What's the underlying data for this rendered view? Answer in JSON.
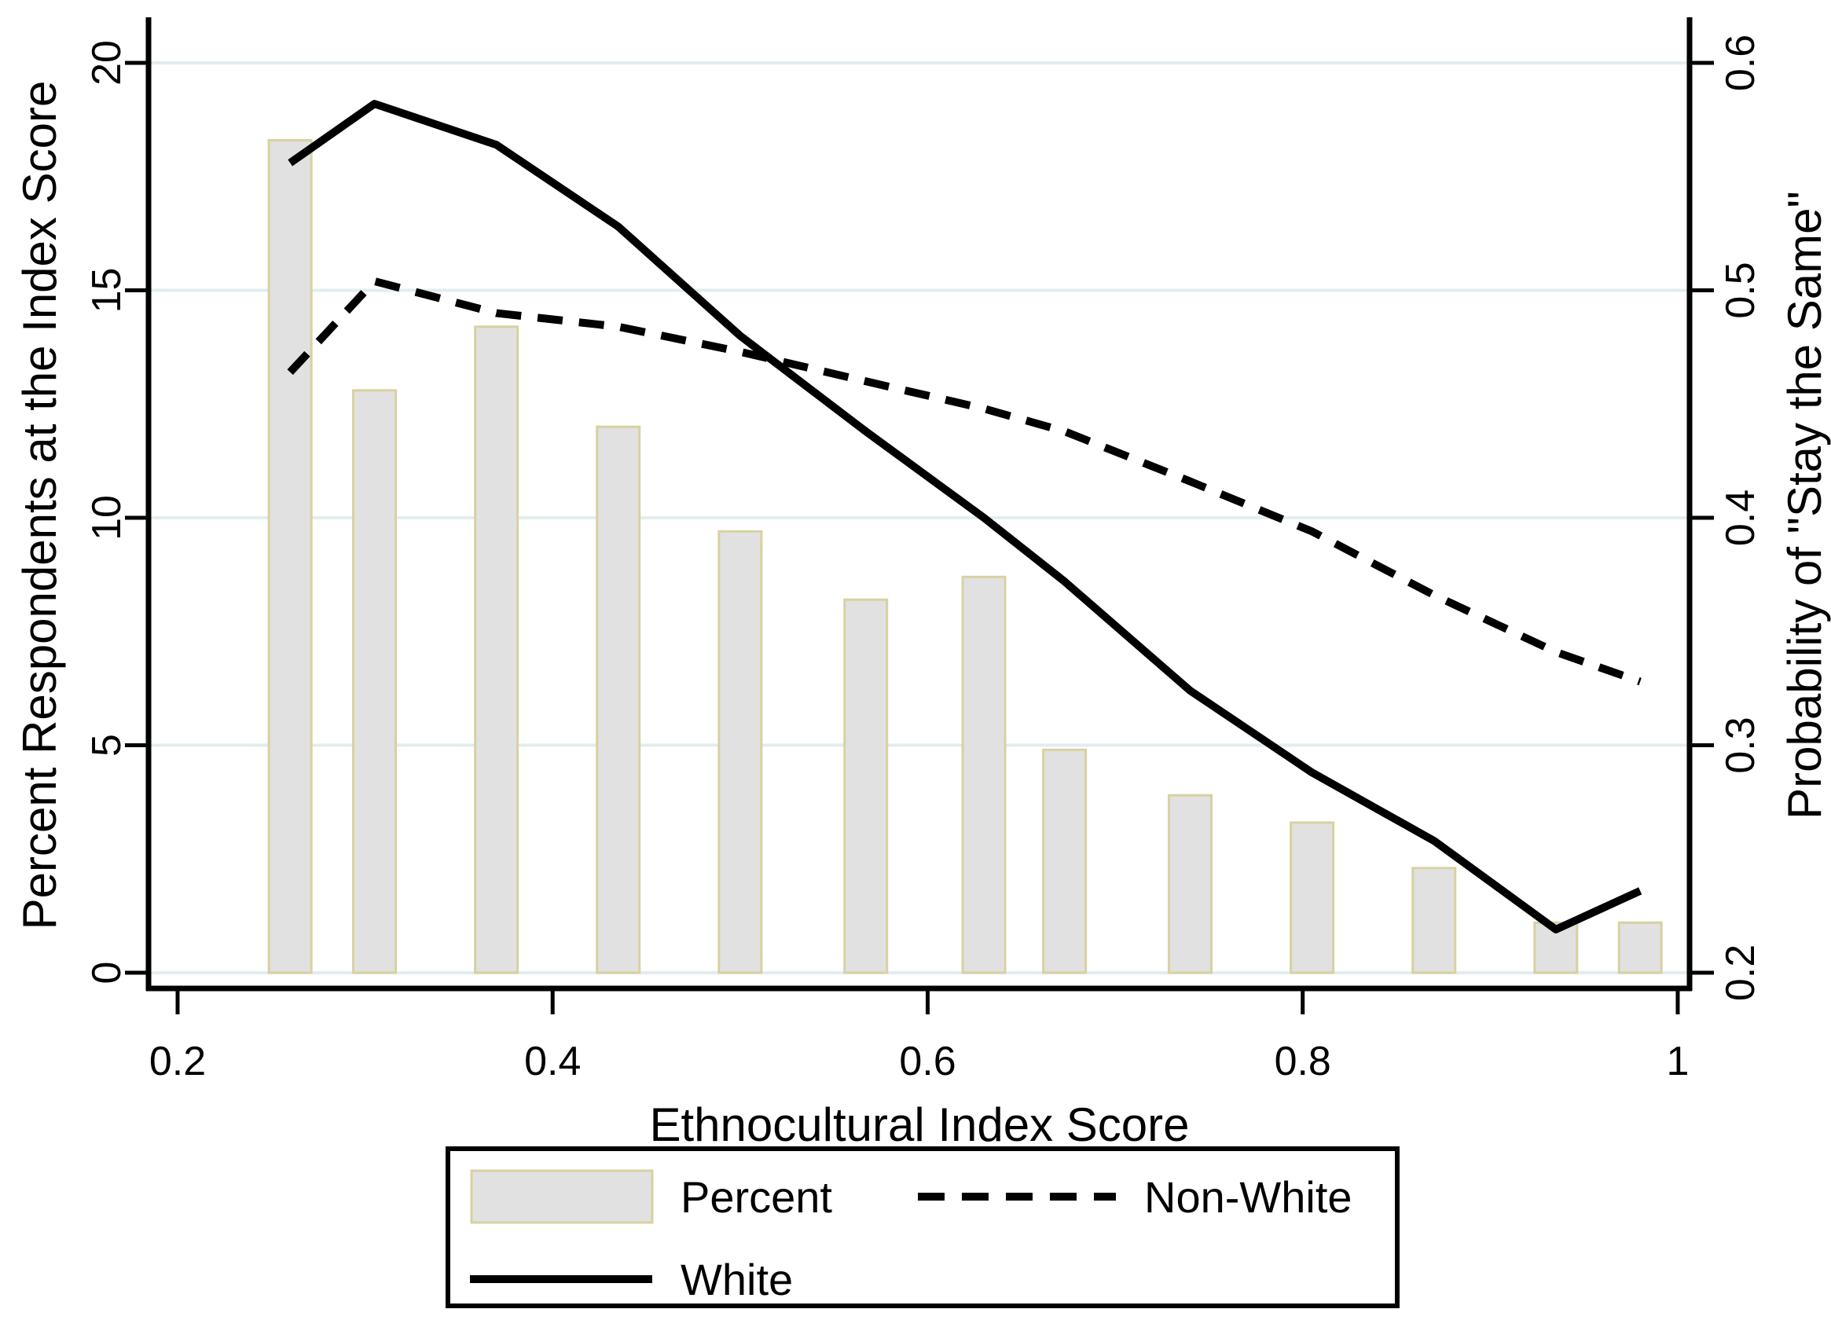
{
  "chart_data": {
    "type": "combo-bar-line",
    "title": "",
    "x": [
      0.26,
      0.305,
      0.37,
      0.435,
      0.5,
      0.567,
      0.63,
      0.673,
      0.74,
      0.805,
      0.87,
      0.935,
      0.98
    ],
    "series": [
      {
        "name": "Percent",
        "type": "bar",
        "axis": "left",
        "values": [
          18.3,
          12.8,
          14.2,
          12.0,
          9.7,
          8.2,
          8.7,
          4.9,
          3.9,
          3.3,
          2.3,
          1.1,
          1.1
        ]
      },
      {
        "name": "Non-White",
        "type": "line",
        "style": "dashed",
        "axis": "right",
        "values": [
          0.464,
          0.504,
          0.49,
          0.484,
          0.473,
          0.46,
          0.448,
          0.438,
          0.416,
          0.394,
          0.366,
          0.341,
          0.328
        ]
      },
      {
        "name": "White",
        "type": "line",
        "style": "solid",
        "axis": "right",
        "values": [
          0.556,
          0.582,
          0.564,
          0.528,
          0.48,
          0.438,
          0.4,
          0.372,
          0.324,
          0.288,
          0.258,
          0.219,
          0.236
        ]
      }
    ],
    "x_axis": {
      "label": "Ethnocultural Index Score",
      "ticks": [
        0.2,
        0.4,
        0.6,
        0.8,
        1
      ],
      "tick_labels": [
        "0.2",
        "0.4",
        "0.6",
        "0.8",
        "1"
      ],
      "range": [
        0.1845,
        1.0063
      ]
    },
    "left_axis": {
      "label": "Percent Respondents at the Index Score",
      "ticks": [
        0,
        5,
        10,
        15,
        20
      ],
      "tick_labels": [
        "0",
        "5",
        "10",
        "15",
        "20"
      ],
      "range": [
        -0.346,
        20.95
      ]
    },
    "right_axis": {
      "label": "Probability of \"Stay the Same\"",
      "ticks": [
        0.2,
        0.3,
        0.4,
        0.5,
        0.6
      ],
      "tick_labels": [
        "0.2",
        "0.3",
        "0.4",
        "0.5",
        "0.6"
      ],
      "range": [
        0.1931,
        0.619
      ]
    },
    "grid": "on",
    "legend_position": "bottom",
    "colors": {
      "bar_fill": "#e1e1e1",
      "bar_stroke": "#d8d1a0",
      "grid_line": "#e2edf0",
      "line_color": "#000000",
      "axis_color": "#000000",
      "background": "#ffffff"
    }
  }
}
